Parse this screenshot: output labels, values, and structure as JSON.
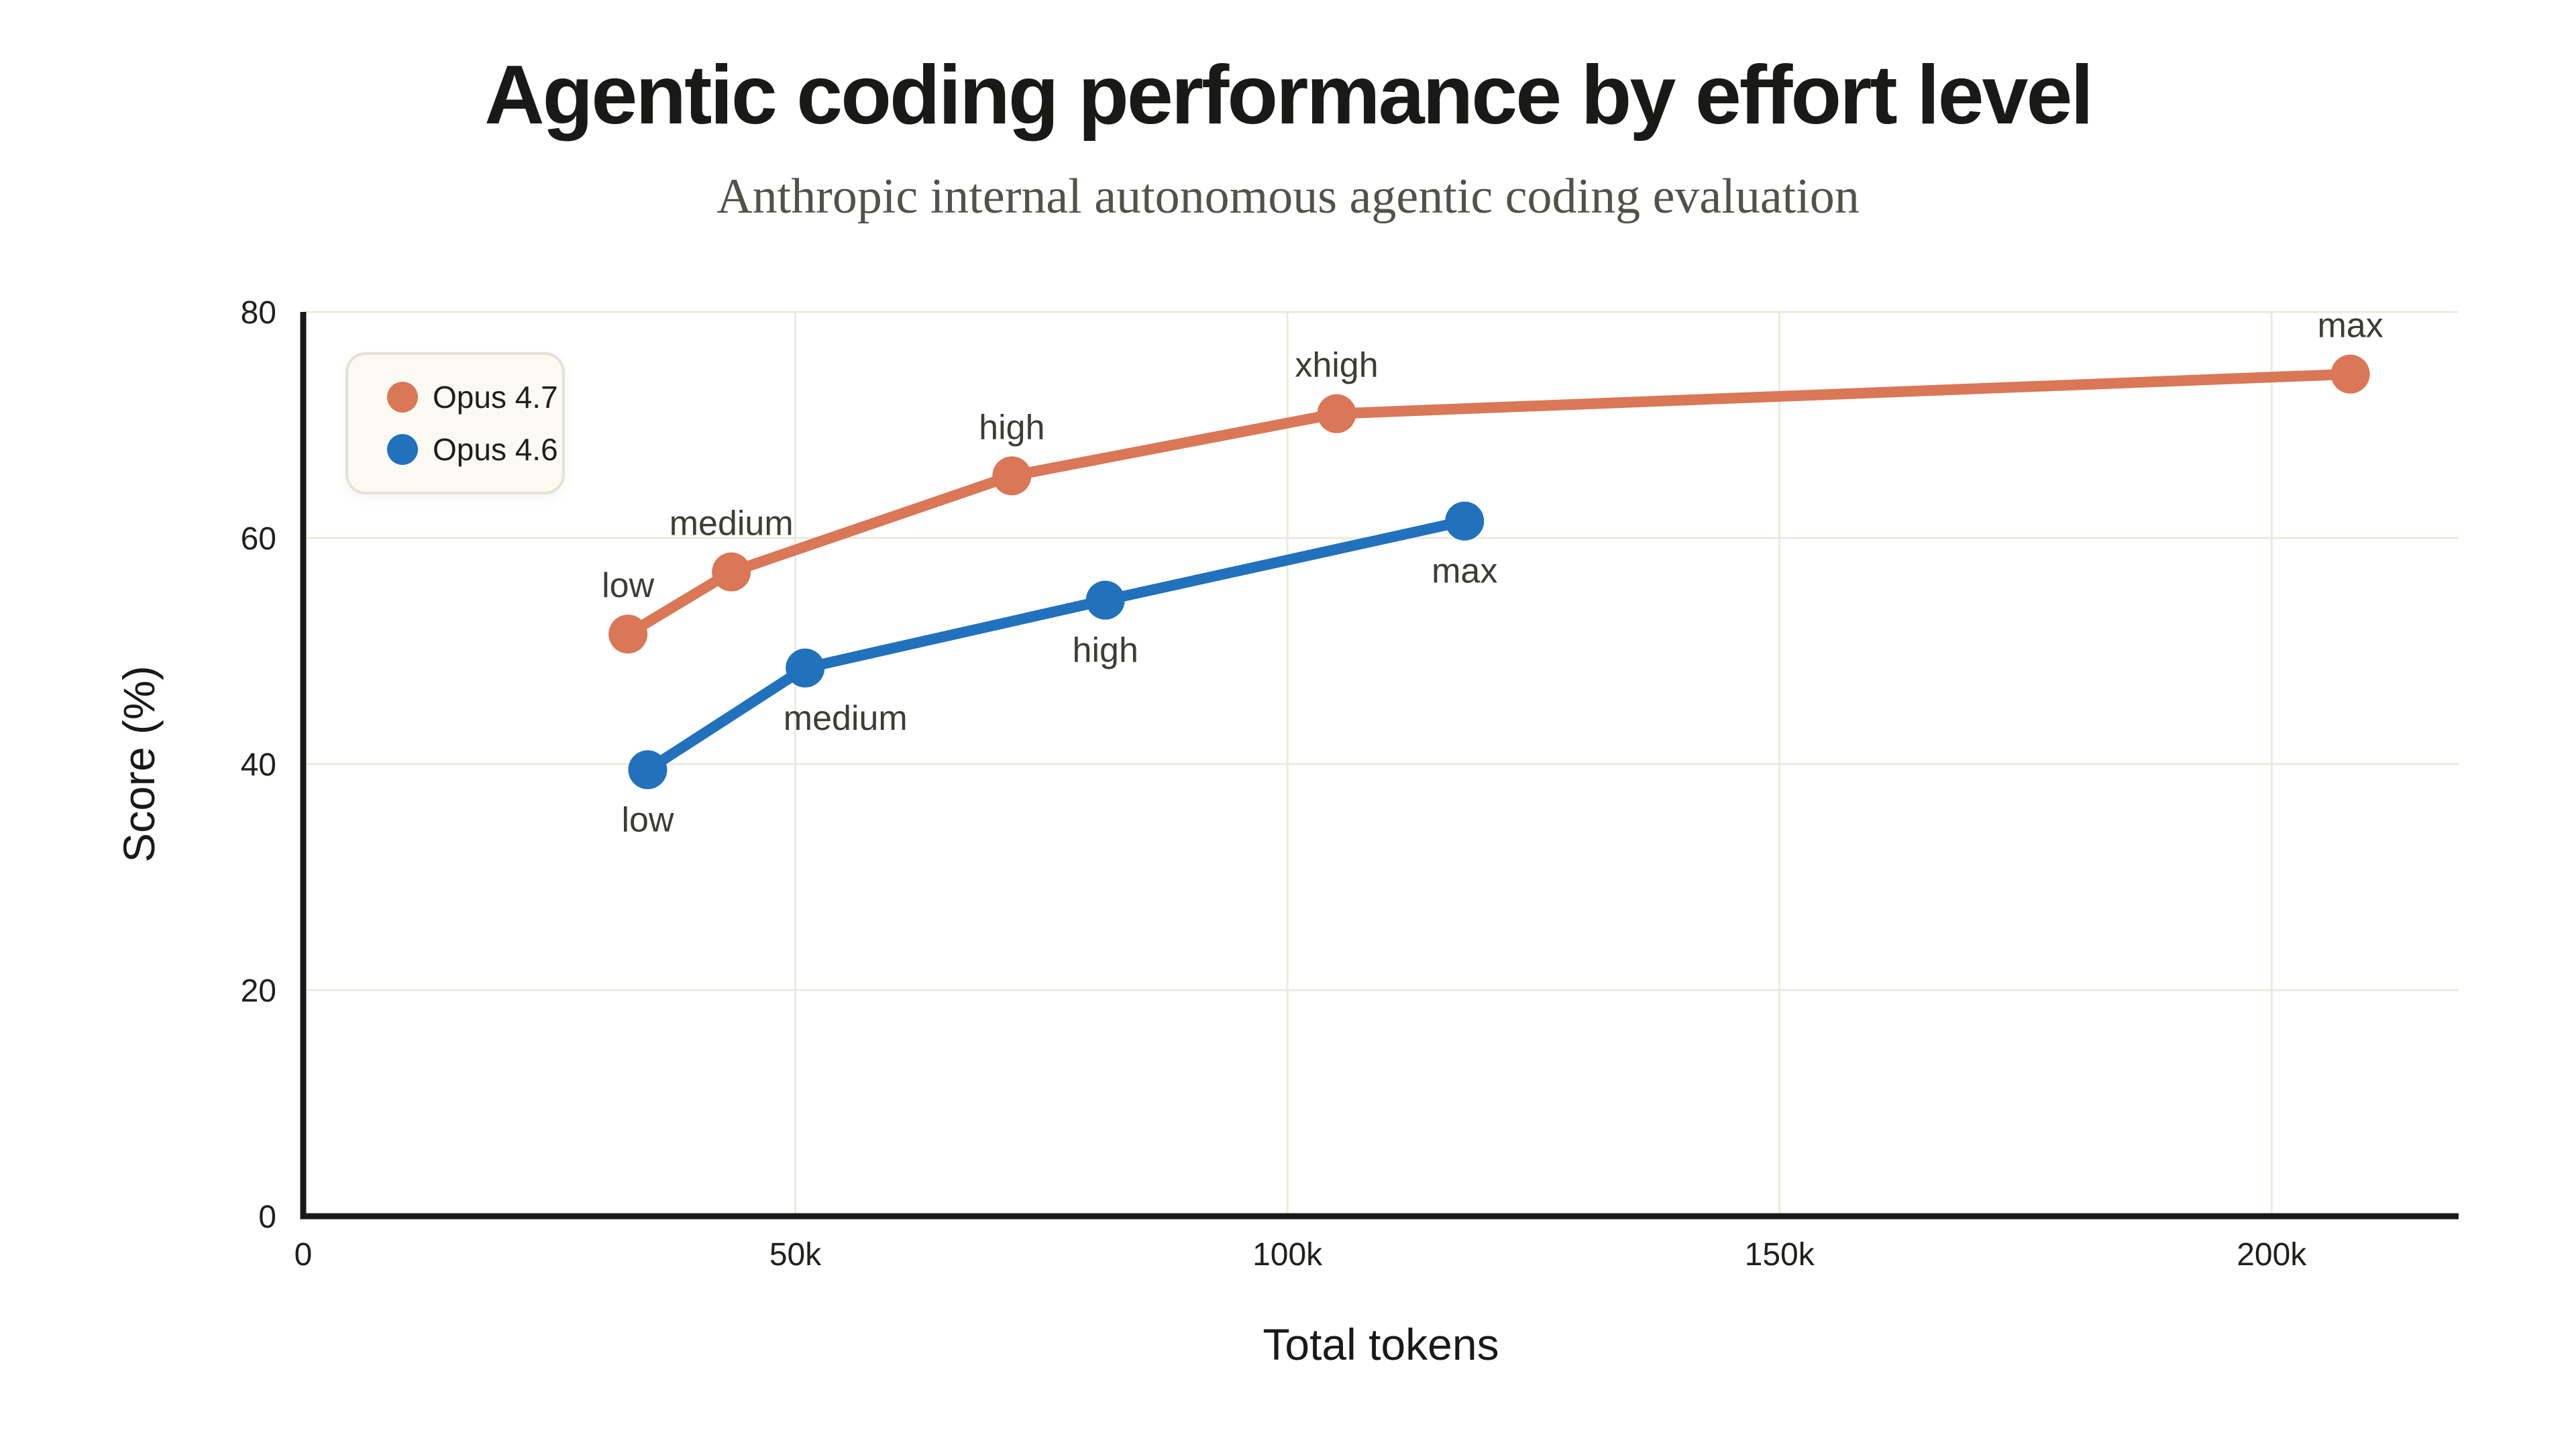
{
  "page": {
    "title": "Agentic coding performance by effort level",
    "subtitle": "Anthropic internal autonomous agentic coding evaluation"
  },
  "colors": {
    "opus_47": "#d97757",
    "opus_46": "#2171bd",
    "grid": "#eceade",
    "axis": "#191917",
    "tick_text": "#21201c",
    "point_label_text": "#3e3c37",
    "axis_label_text": "#191917",
    "title_text": "#191917",
    "subtitle_text": "#53514b",
    "legend_bg": "#faf9f2",
    "legend_border": "#e3e2d5",
    "background": "#ffffff"
  },
  "legend": {
    "items": [
      {
        "label": "Opus 4.7",
        "color": "#d97757"
      },
      {
        "label": "Opus 4.6",
        "color": "#2171bd"
      }
    ]
  },
  "chart_data": {
    "type": "line",
    "title": "Agentic coding performance by effort level",
    "subtitle": "Anthropic internal autonomous agentic coding evaluation",
    "xlabel": "Total tokens",
    "ylabel": "Score (%)",
    "xlim": [
      0,
      219000
    ],
    "ylim": [
      0,
      80
    ],
    "grid": true,
    "legend_position": "upper-left",
    "x_ticks": [
      {
        "value": 0,
        "label": "0"
      },
      {
        "value": 50000,
        "label": "50k"
      },
      {
        "value": 100000,
        "label": "100k"
      },
      {
        "value": 150000,
        "label": "150k"
      },
      {
        "value": 200000,
        "label": "200k"
      }
    ],
    "y_ticks": [
      {
        "value": 0,
        "label": "0"
      },
      {
        "value": 20,
        "label": "20"
      },
      {
        "value": 40,
        "label": "40"
      },
      {
        "value": 60,
        "label": "60"
      },
      {
        "value": 80,
        "label": "80"
      }
    ],
    "series": [
      {
        "name": "Opus 4.7",
        "color": "#d97757",
        "points": [
          {
            "label": "low",
            "tokens": 33000,
            "score": 51.5,
            "label_pos": "above"
          },
          {
            "label": "medium",
            "tokens": 43500,
            "score": 57,
            "label_pos": "above"
          },
          {
            "label": "high",
            "tokens": 72000,
            "score": 65.5,
            "label_pos": "above"
          },
          {
            "label": "xhigh",
            "tokens": 105000,
            "score": 71,
            "label_pos": "above"
          },
          {
            "label": "max",
            "tokens": 208000,
            "score": 74.5,
            "label_pos": "above"
          }
        ]
      },
      {
        "name": "Opus 4.6",
        "color": "#2171bd",
        "points": [
          {
            "label": "low",
            "tokens": 35000,
            "score": 39.5,
            "label_pos": "below"
          },
          {
            "label": "medium",
            "tokens": 51000,
            "score": 48.5,
            "label_pos": "below",
            "label_dx": 60
          },
          {
            "label": "high",
            "tokens": 81500,
            "score": 54.5,
            "label_pos": "below"
          },
          {
            "label": "max",
            "tokens": 118000,
            "score": 61.5,
            "label_pos": "below"
          }
        ]
      }
    ]
  }
}
